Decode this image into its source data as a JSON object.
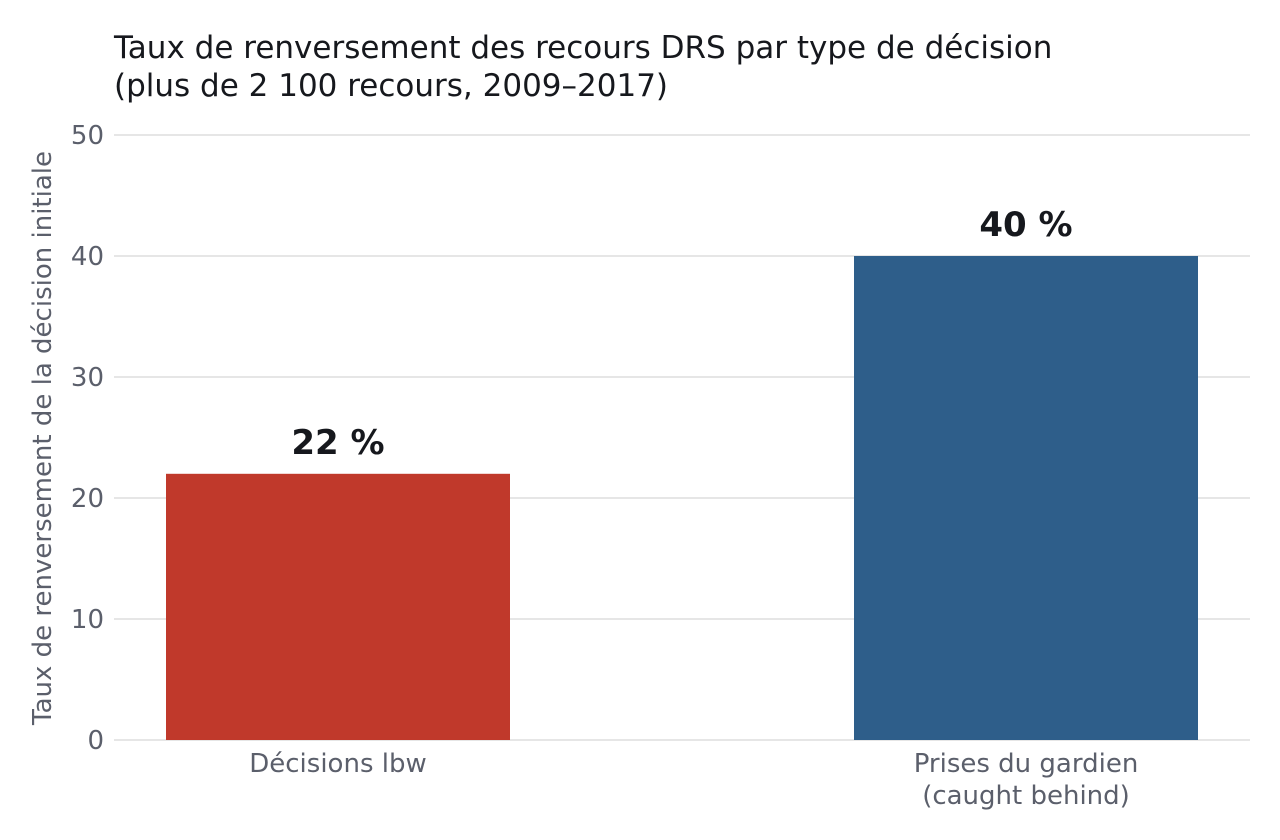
{
  "chart_data": {
    "type": "bar",
    "title": [
      "Taux de renversement des recours DRS par type de décision",
      "(plus de 2 100 recours, 2009–2017)"
    ],
    "ylabel": "Taux de renversement de la décision initiale",
    "xlabel": "",
    "ylim": [
      0,
      50
    ],
    "yticks": [
      0,
      10,
      20,
      30,
      40,
      50
    ],
    "grid": true,
    "categories": [
      [
        "Décisions lbw"
      ],
      [
        "Prises du gardien",
        "(caught behind)"
      ]
    ],
    "values": [
      22,
      40
    ],
    "data_labels": [
      "22 %",
      "40 %"
    ],
    "colors": [
      "#c0392b",
      "#2e5e8a"
    ]
  }
}
